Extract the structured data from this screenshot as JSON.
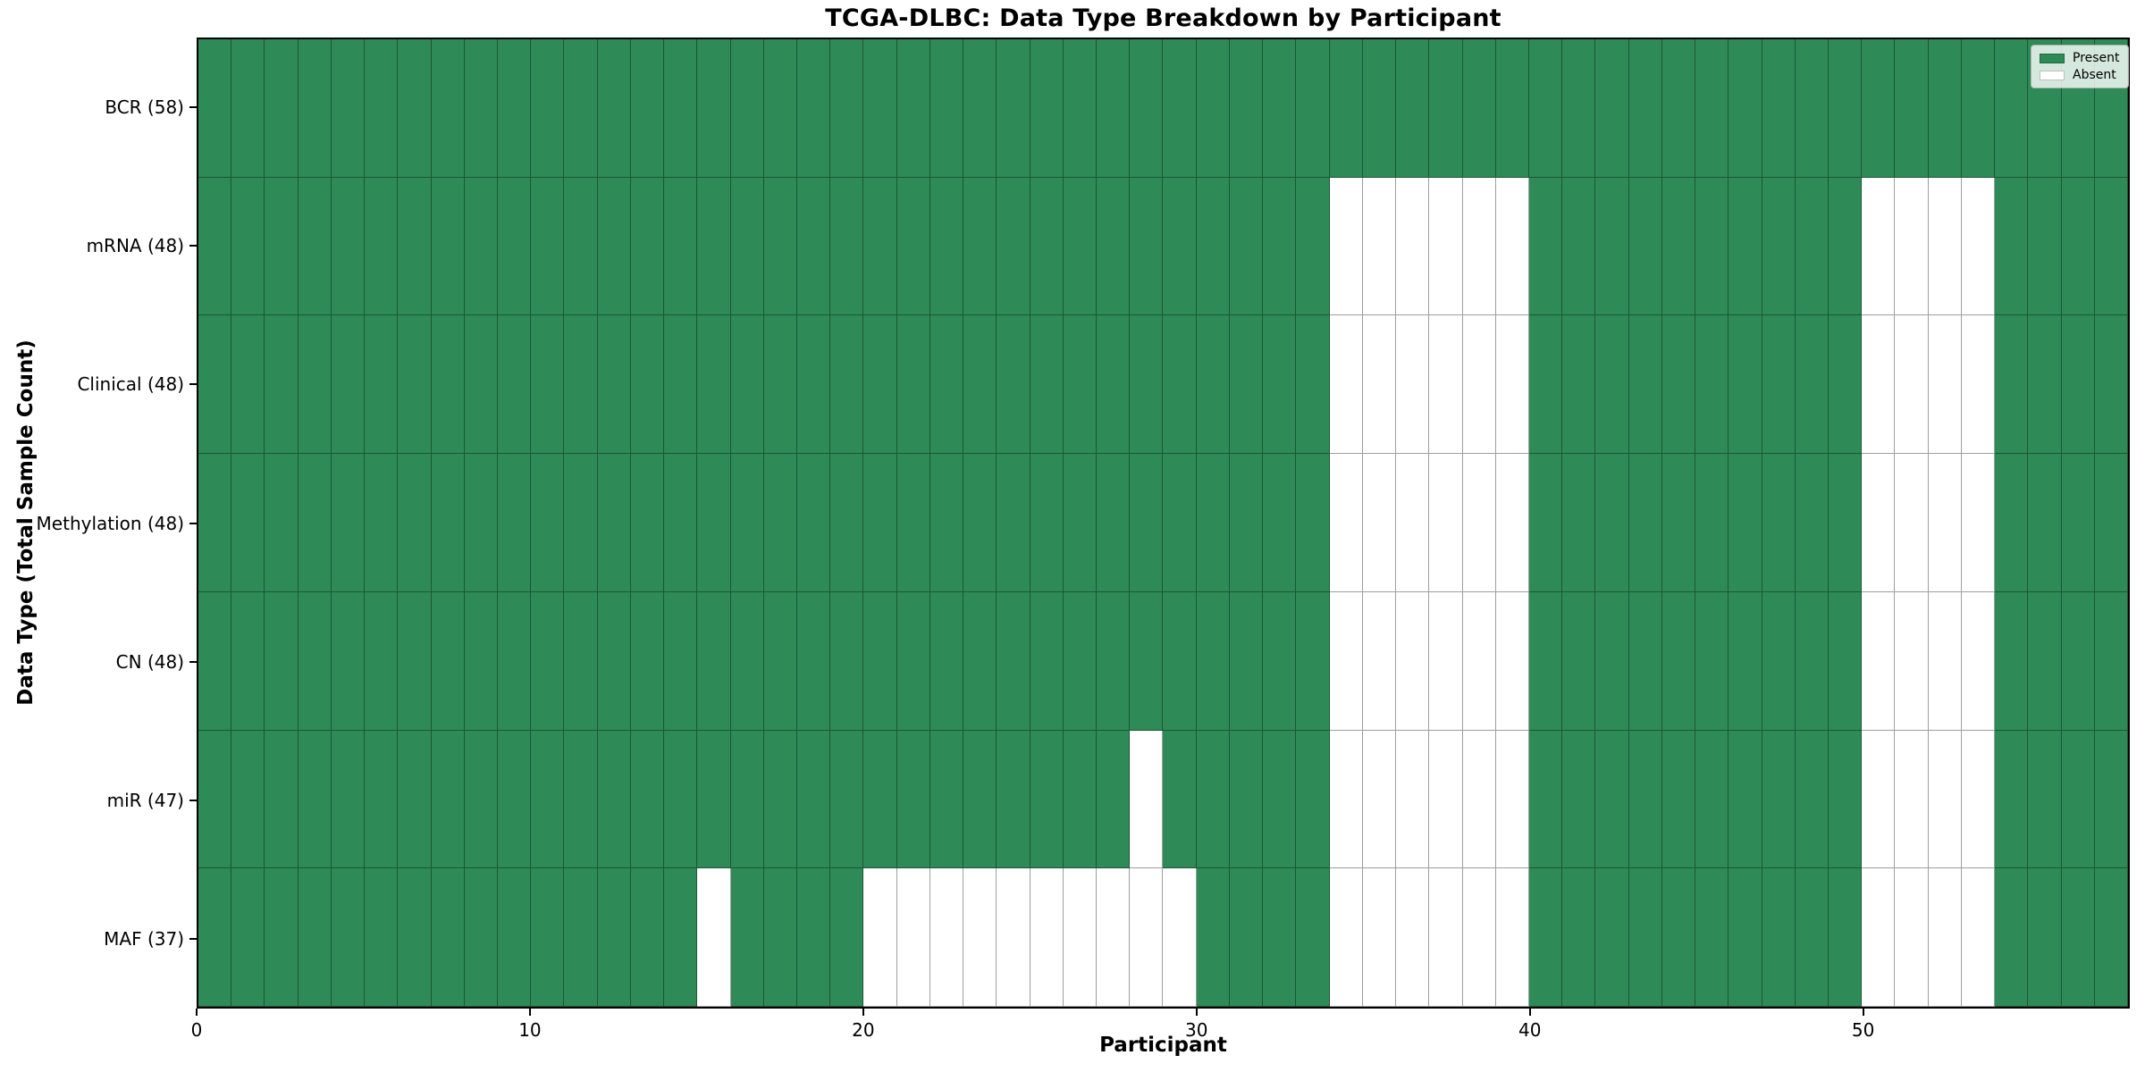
{
  "chart_data": {
    "type": "heatmap",
    "title": "TCGA-DLBC: Data Type Breakdown by Participant",
    "xlabel": "Participant",
    "ylabel": "Data Type (Total Sample Count)",
    "x_ticks": [
      0,
      10,
      20,
      30,
      40,
      50
    ],
    "x_range": [
      0,
      58
    ],
    "n_participants": 58,
    "grid": true,
    "legend_position": "upper right",
    "legend": [
      {
        "label": "Present",
        "color": "#2e8b57"
      },
      {
        "label": "Absent",
        "color": "#ffffff"
      }
    ],
    "colors": {
      "present": "#2e8b57",
      "absent": "#ffffff",
      "cell_edge": "rgba(0,0,0,0.38)",
      "spine": "#000000"
    },
    "rows": [
      {
        "data_type": "BCR",
        "total_samples": 58,
        "label": "BCR (58)",
        "absent_participants": []
      },
      {
        "data_type": "mRNA",
        "total_samples": 48,
        "label": "mRNA (48)",
        "absent_participants": [
          34,
          35,
          36,
          37,
          38,
          39,
          50,
          51,
          52,
          53
        ]
      },
      {
        "data_type": "Clinical",
        "total_samples": 48,
        "label": "Clinical (48)",
        "absent_participants": [
          34,
          35,
          36,
          37,
          38,
          39,
          50,
          51,
          52,
          53
        ]
      },
      {
        "data_type": "Methylation",
        "total_samples": 48,
        "label": "Methylation (48)",
        "absent_participants": [
          34,
          35,
          36,
          37,
          38,
          39,
          50,
          51,
          52,
          53
        ]
      },
      {
        "data_type": "CN",
        "total_samples": 48,
        "label": "CN (48)",
        "absent_participants": [
          34,
          35,
          36,
          37,
          38,
          39,
          50,
          51,
          52,
          53
        ]
      },
      {
        "data_type": "miR",
        "total_samples": 47,
        "label": "miR (47)",
        "absent_participants": [
          28,
          34,
          35,
          36,
          37,
          38,
          39,
          50,
          51,
          52,
          53
        ]
      },
      {
        "data_type": "MAF",
        "total_samples": 37,
        "label": "MAF (37)",
        "absent_participants": [
          15,
          20,
          21,
          22,
          23,
          24,
          25,
          26,
          27,
          28,
          29,
          34,
          35,
          36,
          37,
          38,
          39,
          50,
          51,
          52,
          53
        ]
      }
    ]
  }
}
